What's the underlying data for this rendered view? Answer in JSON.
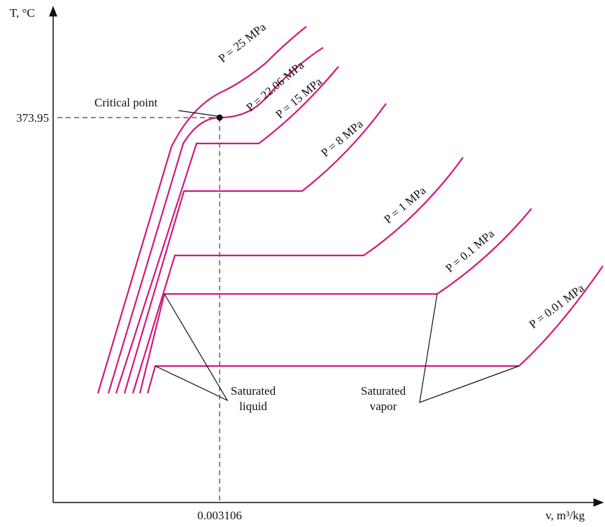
{
  "axes": {
    "y_label": "T, °C",
    "x_label": "v, m³/kg"
  },
  "critical": {
    "label": "Critical point",
    "temperature": "373.95",
    "volume": "0.003106"
  },
  "isobars": [
    "P = 25 MPa",
    "P = 22.06 MPa",
    "P = 15 MPa",
    "P = 8 MPa",
    "P = 1 MPa",
    "P = 0.1 MPa",
    "P = 0.01 MPa"
  ],
  "annotations": {
    "saturated_liquid": [
      "Saturated",
      "liquid"
    ],
    "saturated_vapor": [
      "Saturated",
      "vapor"
    ]
  }
}
